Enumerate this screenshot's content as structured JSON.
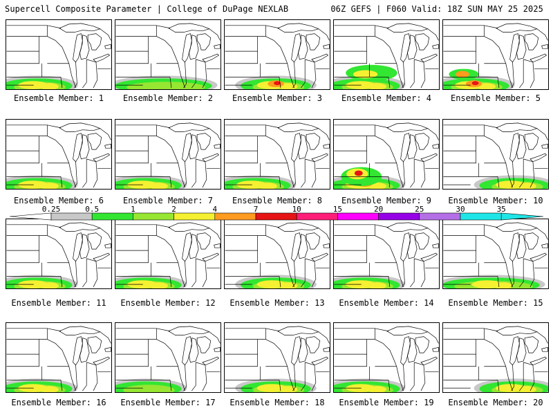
{
  "header": {
    "left_title": "Supercell Composite Parameter | College of DuPage NEXLAB",
    "right_title": "06Z GEFS | F060 Valid: 18Z SUN MAY 25 2025"
  },
  "panel_label_prefix": "Ensemble Member: ",
  "members": [
    {
      "label": "Ensemble Member: 1",
      "intensity": "moderate",
      "region": "south-west"
    },
    {
      "label": "Ensemble Member: 2",
      "intensity": "low",
      "region": "south"
    },
    {
      "label": "Ensemble Member: 3",
      "intensity": "high",
      "region": "south-central"
    },
    {
      "label": "Ensemble Member: 4",
      "intensity": "moderate",
      "region": "south-west"
    },
    {
      "label": "Ensemble Member: 5",
      "intensity": "high",
      "region": "south-west"
    },
    {
      "label": "Ensemble Member: 6",
      "intensity": "moderate",
      "region": "south-west"
    },
    {
      "label": "Ensemble Member: 7",
      "intensity": "moderate",
      "region": "south-west"
    },
    {
      "label": "Ensemble Member: 8",
      "intensity": "moderate",
      "region": "south-west"
    },
    {
      "label": "Ensemble Member: 9",
      "intensity": "high",
      "region": "south-west"
    },
    {
      "label": "Ensemble Member: 10",
      "intensity": "moderate",
      "region": "south-east"
    },
    {
      "label": "Ensemble Member: 11",
      "intensity": "moderate",
      "region": "south-west"
    },
    {
      "label": "Ensemble Member: 12",
      "intensity": "moderate",
      "region": "south-west"
    },
    {
      "label": "Ensemble Member: 13",
      "intensity": "moderate",
      "region": "south-central"
    },
    {
      "label": "Ensemble Member: 14",
      "intensity": "moderate",
      "region": "south-west"
    },
    {
      "label": "Ensemble Member: 15",
      "intensity": "moderate",
      "region": "south"
    },
    {
      "label": "Ensemble Member: 16",
      "intensity": "moderate",
      "region": "south-west"
    },
    {
      "label": "Ensemble Member: 17",
      "intensity": "low",
      "region": "south-west"
    },
    {
      "label": "Ensemble Member: 18",
      "intensity": "moderate",
      "region": "south-central"
    },
    {
      "label": "Ensemble Member: 19",
      "intensity": "moderate",
      "region": "south-west"
    },
    {
      "label": "Ensemble Member: 20",
      "intensity": "moderate",
      "region": "south-east"
    }
  ],
  "colorbar": {
    "labels": [
      "0.25",
      "0.5",
      "1",
      "2",
      "4",
      "7",
      "10",
      "15",
      "20",
      "25",
      "30",
      "35"
    ],
    "colors": [
      "#ffffff",
      "#c8c8c8",
      "#32e632",
      "#96e632",
      "#f5f032",
      "#ff9b1e",
      "#e61414",
      "#ff1e78",
      "#ff00ff",
      "#9600e6",
      "#b46ee6",
      "#1ee6e6",
      "#1ee6e6"
    ]
  },
  "map_colors": {
    "gray": "#c8c8c8",
    "green": "#32e632",
    "light_green": "#96e632",
    "yellow": "#f5f032",
    "orange": "#ff9b1e",
    "red": "#e61414"
  }
}
